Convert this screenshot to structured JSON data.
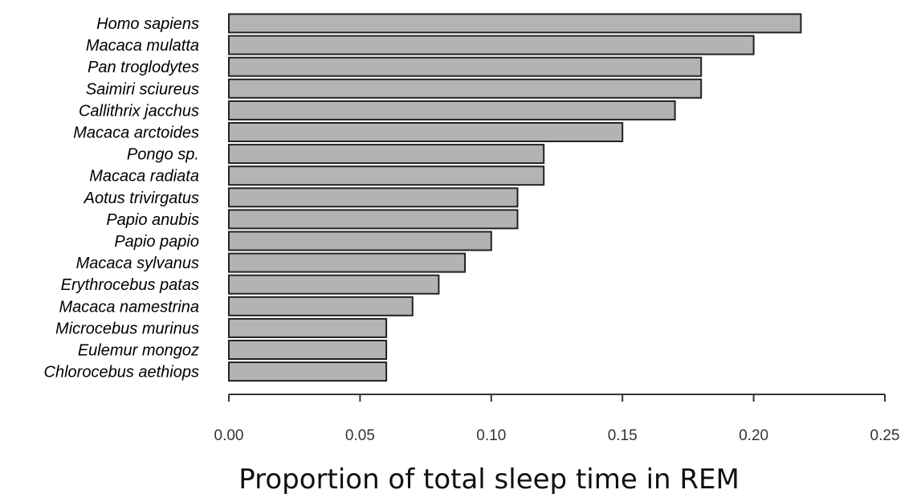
{
  "chart_data": {
    "type": "bar",
    "orientation": "horizontal",
    "categories": [
      "Homo sapiens",
      "Macaca mulatta",
      "Pan troglodytes",
      "Saimiri sciureus",
      "Callithrix jacchus",
      "Macaca arctoides",
      "Pongo sp.",
      "Macaca radiata",
      "Aotus trivirgatus",
      "Papio anubis",
      "Papio papio",
      "Macaca sylvanus",
      "Erythrocebus patas",
      "Macaca namestrina",
      "Microcebus murinus",
      "Eulemur mongoz",
      "Chlorocebus aethiops"
    ],
    "values": [
      0.218,
      0.2,
      0.18,
      0.18,
      0.17,
      0.15,
      0.12,
      0.12,
      0.11,
      0.11,
      0.1,
      0.09,
      0.08,
      0.07,
      0.06,
      0.06,
      0.06
    ],
    "xlabel": "Proportion of total sleep time in REM",
    "ylabel": "",
    "title": "",
    "xlim": [
      0,
      0.25
    ],
    "xticks": [
      0.0,
      0.05,
      0.1,
      0.15,
      0.2,
      0.25
    ],
    "xtick_labels": [
      "0.00",
      "0.05",
      "0.10",
      "0.15",
      "0.20",
      "0.25"
    ],
    "grid": false,
    "legend": "none",
    "bar_color": "#b3b3b3",
    "bar_edge_color": "#222222"
  }
}
